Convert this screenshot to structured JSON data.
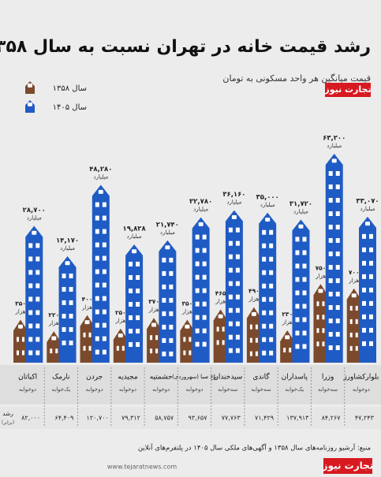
{
  "chart_data": {
    "type": "bar",
    "title": "رشد قیمت خانه در تهران نسبت به سال ۱۳۵۸",
    "subtitle": "قیمت میانگین هر واحد مسکونی به تومان",
    "brand": "تجارت نیوز",
    "categories": [
      "اکباتان",
      "نارمک",
      "جردن",
      "مجیدیه",
      "حشمتیه",
      "باغ صبا (سهروردی)",
      "سیدخندان",
      "گاندی",
      "پاسداران",
      "وزرا",
      "بلوارکشاورز"
    ],
    "category_notes": [
      "دوخوابه",
      "یک‌خوابه",
      "دوخوابه",
      "دوخوابه",
      "دوخوابه",
      "دوخوابه",
      "سه‌خوابه",
      "سه‌خوابه",
      "یک‌خوابه",
      "سه‌خوابه",
      "دوخوابه"
    ],
    "series": [
      {
        "name": "سال ۱۳۵۸",
        "color": "#7b4a2c",
        "unit": "هزار",
        "values": [
          350,
          220,
          400,
          250,
          370,
          350,
          465,
          490,
          230,
          750,
          700
        ],
        "value_labels": [
          "۳۵۰",
          "۲۲۰",
          "۴۰۰",
          "۲۵۰",
          "۳۷۰",
          "۳۵۰",
          "۴۶۵",
          "۴۹۰",
          "۲۳۰",
          "۷۵۰",
          "۷۰۰"
        ]
      },
      {
        "name": "سال ۱۴۰۵",
        "color": "#1f5bc4",
        "unit": "میلیارد",
        "values": [
          28.7,
          14.17,
          48.28,
          19.828,
          21.74,
          32.78,
          36.16,
          35,
          31.72,
          63.2,
          33.07
        ],
        "value_labels": [
          "۲۸,۷۰۰",
          "۱۴,۱۷۰",
          "۴۸,۲۸۰",
          "۱۹,۸۲۸",
          "۲۱,۷۴۰",
          "۳۲,۷۸۰",
          "۳۶,۱۶۰",
          "۳۵,۰۰۰",
          "۳۱,۷۲۰",
          "۶۳,۲۰۰",
          "۳۳,۰۷۰"
        ]
      }
    ],
    "growth": {
      "label": "رشد",
      "unit": "(برابر)",
      "values": [
        82000,
        64409,
        120700,
        79312,
        58757,
        93657,
        77763,
        71429,
        137913,
        84267,
        47243
      ],
      "value_labels": [
        "۸۲,۰۰۰",
        "۶۴,۴۰۹",
        "۱۲۰,۷۰۰",
        "۷۹,۳۱۲",
        "۵۸,۷۵۷",
        "۹۳,۶۵۷",
        "۷۷,۷۶۳",
        "۷۱,۴۲۹",
        "۱۳۷,۹۱۳",
        "۸۴,۲۶۷",
        "۴۷,۲۴۳"
      ]
    },
    "source": "منبع: آرشیو روزنامه‌های سال ۱۳۵۸ و آگهی‌های ملکی سال ۱۴۰۵ در پلتفرم‌های آنلاین",
    "website": "www.tejaratnews.com"
  }
}
